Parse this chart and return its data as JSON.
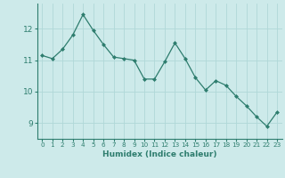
{
  "x": [
    0,
    1,
    2,
    3,
    4,
    5,
    6,
    7,
    8,
    9,
    10,
    11,
    12,
    13,
    14,
    15,
    16,
    17,
    18,
    19,
    20,
    21,
    22,
    23
  ],
  "y": [
    11.15,
    11.05,
    11.35,
    11.8,
    12.45,
    11.95,
    11.5,
    11.1,
    11.05,
    11.0,
    10.4,
    10.4,
    10.95,
    11.55,
    11.05,
    10.45,
    10.05,
    10.35,
    10.2,
    9.85,
    9.55,
    9.2,
    8.9,
    9.35
  ],
  "xlabel": "Humidex (Indice chaleur)",
  "ylim": [
    8.5,
    12.8
  ],
  "xlim": [
    -0.5,
    23.5
  ],
  "yticks": [
    9,
    10,
    11,
    12
  ],
  "xticks": [
    0,
    1,
    2,
    3,
    4,
    5,
    6,
    7,
    8,
    9,
    10,
    11,
    12,
    13,
    14,
    15,
    16,
    17,
    18,
    19,
    20,
    21,
    22,
    23
  ],
  "line_color": "#2e7d6e",
  "marker": "D",
  "marker_size": 2.0,
  "bg_color": "#cdeaea",
  "grid_color": "#b0d8d8",
  "tick_color": "#2e7d6e",
  "label_color": "#2e7d6e",
  "xlabel_fontsize": 6.5,
  "ytick_fontsize": 6.5,
  "xtick_fontsize": 5.2
}
